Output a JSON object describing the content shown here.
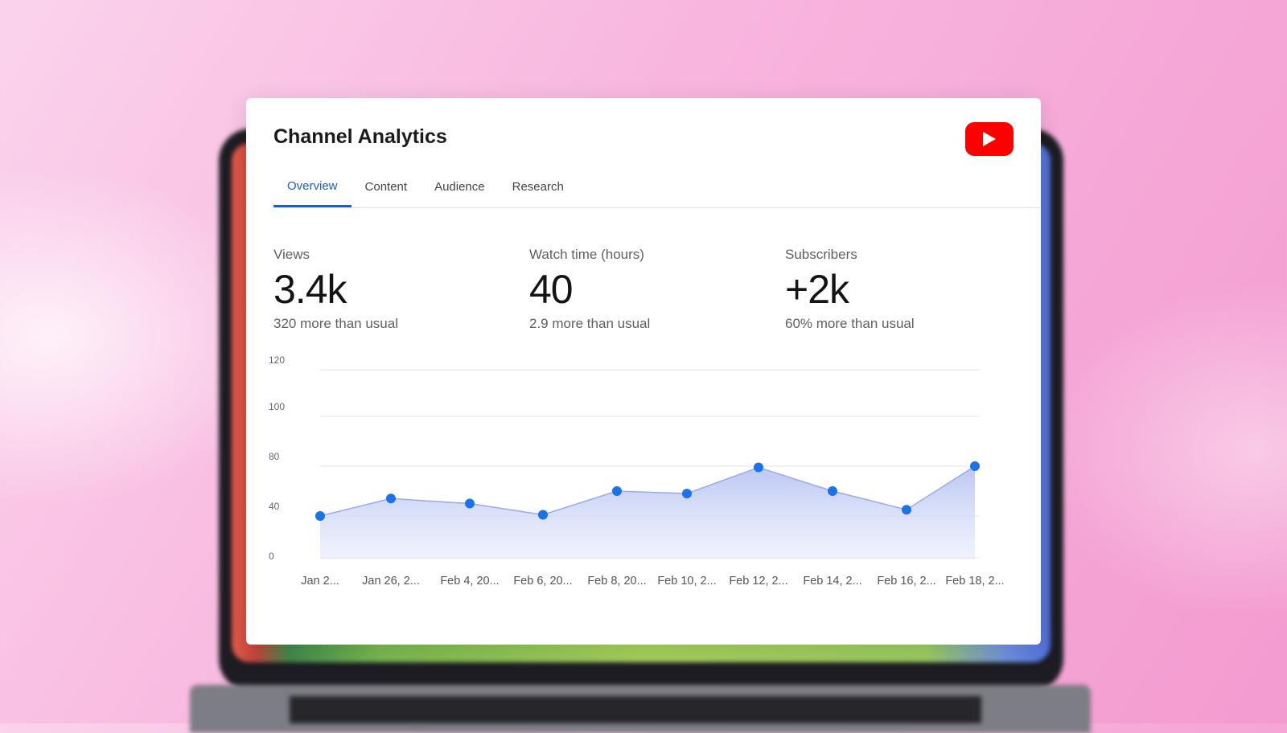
{
  "app": {
    "title": "Channel Analytics",
    "logo": "youtube-logo-icon",
    "brand_color": "#ff0000",
    "accent_color": "#1a5fc1"
  },
  "tabs": [
    {
      "label": "Overview",
      "active": true
    },
    {
      "label": "Content",
      "active": false
    },
    {
      "label": "Audience",
      "active": false
    },
    {
      "label": "Research",
      "active": false
    }
  ],
  "metrics": [
    {
      "label": "Views",
      "value": "3.4k",
      "change": "320 more than usual"
    },
    {
      "label": "Watch time (hours)",
      "value": "40",
      "change": "2.9 more than usual"
    },
    {
      "label": "Subscribers",
      "value": "+2k",
      "change": "60% more than usual"
    }
  ],
  "chart_data": {
    "type": "area",
    "title": "",
    "xlabel": "",
    "ylabel": "",
    "y_ticks": [
      "0",
      "40",
      "80",
      "100",
      "120"
    ],
    "categories": [
      "Jan 2...",
      "Jan 26, 2...",
      "Feb 4, 20...",
      "Feb 6, 20...",
      "Feb 8, 20...",
      "Feb 10, 2...",
      "Feb 12, 2...",
      "Feb 14, 2...",
      "Feb 16, 2...",
      "Feb 18, 2..."
    ],
    "series": [
      {
        "values": [
          40,
          54,
          50,
          41,
          60,
          58,
          79,
          60,
          45,
          80
        ]
      }
    ],
    "grid": true,
    "legend": "none",
    "line_color": "#1a73e8",
    "fill_color": "#c7d2f4"
  }
}
